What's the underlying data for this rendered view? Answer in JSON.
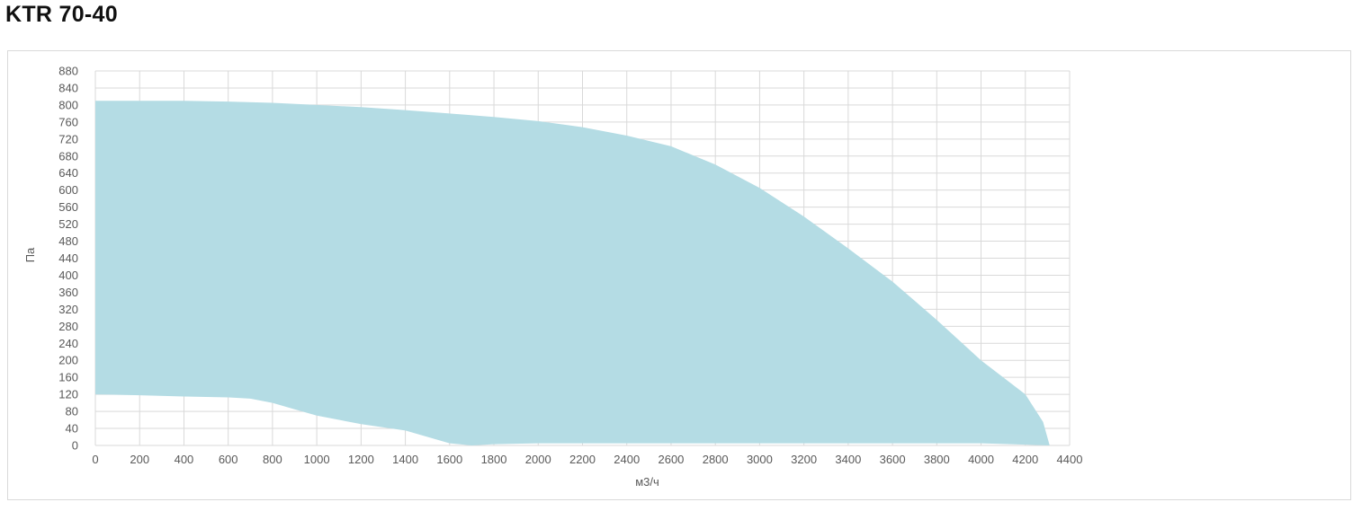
{
  "page": {
    "title": "KTR 70-40"
  },
  "chart_data": {
    "type": "area",
    "title": "",
    "xlabel": "м3/ч",
    "ylabel": "Па",
    "xlim": [
      0,
      4400
    ],
    "ylim": [
      0,
      880
    ],
    "x_ticks": [
      0,
      200,
      400,
      600,
      800,
      1000,
      1200,
      1400,
      1600,
      1800,
      2000,
      2200,
      2400,
      2600,
      2800,
      3000,
      3200,
      3400,
      3600,
      3800,
      4000,
      4200,
      4400
    ],
    "y_ticks": [
      0,
      40,
      80,
      120,
      160,
      200,
      240,
      280,
      320,
      360,
      400,
      440,
      480,
      520,
      560,
      600,
      640,
      680,
      720,
      760,
      800,
      840,
      880
    ],
    "grid": true,
    "legend": "none",
    "fill_color": "#b4dce4",
    "grid_color": "#d9d9d9",
    "upper_boundary": {
      "x": [
        0,
        200,
        400,
        600,
        800,
        1000,
        1200,
        1400,
        1600,
        1800,
        2000,
        2200,
        2400,
        2600,
        2800,
        3000,
        3200,
        3400,
        3600,
        3800,
        4000,
        4200,
        4280,
        4310
      ],
      "y": [
        810,
        810,
        810,
        808,
        805,
        800,
        795,
        788,
        780,
        772,
        762,
        748,
        728,
        703,
        660,
        605,
        538,
        463,
        385,
        295,
        200,
        120,
        55,
        0
      ]
    },
    "lower_boundary": {
      "x": [
        0,
        200,
        400,
        600,
        700,
        800,
        900,
        1000,
        1200,
        1400,
        1500,
        1600,
        1700,
        1800,
        2000,
        2400,
        3000,
        3600,
        4000,
        4310
      ],
      "y": [
        120,
        118,
        115,
        113,
        110,
        100,
        85,
        70,
        50,
        35,
        20,
        5,
        0,
        3,
        5,
        5,
        5,
        5,
        5,
        0
      ]
    }
  }
}
